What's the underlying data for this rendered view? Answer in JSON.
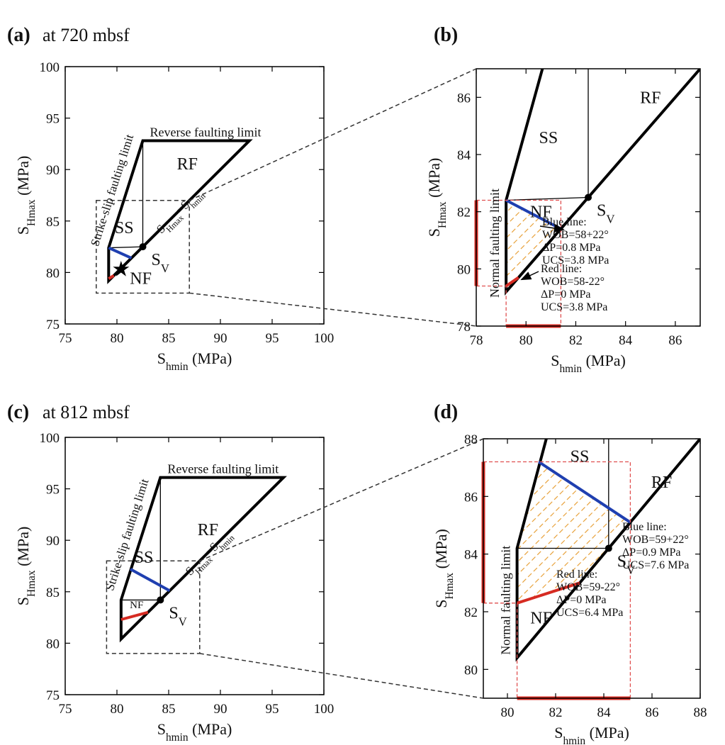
{
  "colors": {
    "frame": "#000000",
    "blue": "#1f3fb0",
    "red": "#d62b22",
    "hatch": "#e8a23c",
    "guide_dash": "#333333",
    "red_dash": "#e05050"
  },
  "chart_data": [
    {
      "id": "a",
      "label": "(a)",
      "subtitle": "at 720 mbsf",
      "type": "stress-polygon",
      "xlabel": "S",
      "xlabel_sub": "hmin",
      "xlabel_unit": " (MPa)",
      "ylabel": "S",
      "ylabel_sub": "Hmax",
      "ylabel_unit": " (MPa)",
      "xlim": [
        75,
        100
      ],
      "ylim": [
        75,
        100
      ],
      "xticks": [
        75,
        80,
        85,
        90,
        95,
        100
      ],
      "yticks": [
        75,
        80,
        85,
        90,
        95,
        100
      ],
      "sv": 82.5,
      "polygon": [
        [
          79.2,
          79.2
        ],
        [
          79.2,
          82.4
        ],
        [
          82.5,
          92.8
        ],
        [
          92.8,
          92.8
        ]
      ],
      "internal_lines": [
        [
          [
            79.2,
            82.4
          ],
          [
            82.5,
            82.5
          ]
        ],
        [
          [
            82.5,
            82.5
          ],
          [
            82.5,
            92.8
          ]
        ]
      ],
      "blue_line": [
        [
          79.2,
          82.4
        ],
        [
          81.4,
          81.4
        ]
      ],
      "red_line": [
        [
          79.2,
          79.4
        ],
        [
          79.7,
          79.7
        ]
      ],
      "star": [
        80.4,
        80.3
      ],
      "zoom_box": [
        [
          78,
          78
        ],
        [
          87,
          87
        ]
      ],
      "regions": [
        {
          "text": "RF",
          "at": [
            86.8,
            90.0
          ]
        },
        {
          "text": "SS",
          "at": [
            80.7,
            83.8
          ]
        },
        {
          "text": "NF",
          "at": [
            82.3,
            78.9
          ]
        }
      ],
      "annotations": {
        "sv_label": "S",
        "sv_sub": "V",
        "reverse_limit": "Reverse faulting limit",
        "strike_limit": "Strike-slip faulting limit",
        "diag_S1": "S",
        "diag_sub1": "Hmax",
        "diag_eq": "=S",
        "diag_sub2": "hmin"
      }
    },
    {
      "id": "b",
      "label": "(b)",
      "subtitle": "",
      "type": "stress-polygon",
      "xlabel": "S",
      "xlabel_sub": "hmin",
      "xlabel_unit": " (MPa)",
      "ylabel": "S",
      "ylabel_sub": "Hmax",
      "ylabel_unit": " (MPa)",
      "xlim": [
        78,
        87
      ],
      "ylim": [
        78,
        87
      ],
      "xticks": [
        78,
        80,
        82,
        84,
        86
      ],
      "yticks": [
        78,
        80,
        82,
        84,
        86
      ],
      "sv": 82.5,
      "polygon": [
        [
          79.2,
          79.2
        ],
        [
          79.2,
          82.4
        ],
        [
          82.5,
          92.8
        ],
        [
          92.8,
          92.8
        ]
      ],
      "internal_lines": [
        [
          [
            79.2,
            82.4
          ],
          [
            82.5,
            82.5
          ]
        ],
        [
          [
            82.5,
            82.5
          ],
          [
            82.5,
            92.8
          ]
        ]
      ],
      "blue_line": [
        [
          79.2,
          82.4
        ],
        [
          81.4,
          81.4
        ]
      ],
      "red_line": [
        [
          79.2,
          79.4
        ],
        [
          79.7,
          79.7
        ]
      ],
      "hatch_poly": [
        [
          79.2,
          79.4
        ],
        [
          79.2,
          82.4
        ],
        [
          81.4,
          81.4
        ],
        [
          79.7,
          79.7
        ]
      ],
      "window_box": [
        [
          79.2,
          79.4
        ],
        [
          81.4,
          82.4
        ]
      ],
      "x_range_bar": [
        79.2,
        81.4
      ],
      "y_range_bar": [
        79.4,
        82.4
      ],
      "regions": [
        {
          "text": "RF",
          "at": [
            85.0,
            85.8
          ]
        },
        {
          "text": "SS",
          "at": [
            80.9,
            84.4
          ]
        },
        {
          "text": "NF",
          "at": [
            80.6,
            81.8
          ]
        }
      ],
      "annotations": {
        "sv_label": "S",
        "sv_sub": "V",
        "normal_limit": "Normal faulting limit",
        "blue_text": [
          "Blue line:",
          "WOB=58+22°",
          "ΔP=0.8 MPa",
          "UCS=3.8 MPa"
        ],
        "red_text": [
          "Red line:",
          "WOB=58-22°",
          "ΔP=0 MPa",
          "UCS=3.8 MPa"
        ]
      }
    },
    {
      "id": "c",
      "label": "(c)",
      "subtitle": "at 812 mbsf",
      "type": "stress-polygon",
      "xlabel": "S",
      "xlabel_sub": "hmin",
      "xlabel_unit": " (MPa)",
      "ylabel": "S",
      "ylabel_sub": "Hmax",
      "ylabel_unit": " (MPa)",
      "xlim": [
        75,
        100
      ],
      "ylim": [
        75,
        100
      ],
      "xticks": [
        75,
        80,
        85,
        90,
        95,
        100
      ],
      "yticks": [
        75,
        80,
        85,
        90,
        95,
        100
      ],
      "sv": 84.2,
      "polygon": [
        [
          80.4,
          80.4
        ],
        [
          80.4,
          84.2
        ],
        [
          84.2,
          96.1
        ],
        [
          96.1,
          96.1
        ]
      ],
      "internal_lines": [
        [
          [
            80.4,
            84.2
          ],
          [
            84.2,
            84.2
          ]
        ],
        [
          [
            84.2,
            84.2
          ],
          [
            84.2,
            96.1
          ]
        ]
      ],
      "blue_line": [
        [
          81.3,
          87.2
        ],
        [
          85.1,
          85.1
        ]
      ],
      "red_line": [
        [
          80.4,
          82.3
        ],
        [
          83.0,
          83.0
        ]
      ],
      "zoom_box": [
        [
          79,
          79
        ],
        [
          88,
          88
        ]
      ],
      "regions": [
        {
          "text": "RF",
          "at": [
            88.8,
            90.5
          ]
        },
        {
          "text": "SS",
          "at": [
            82.6,
            87.8
          ]
        },
        {
          "text": "NF",
          "at": [
            81.9,
            83.4
          ]
        }
      ],
      "annotations": {
        "sv_label": "S",
        "sv_sub": "V",
        "reverse_limit": "Reverse faulting limit",
        "strike_limit": "Strike-slip faulting limit",
        "diag_S1": "S",
        "diag_sub1": "Hmax",
        "diag_eq": "=S",
        "diag_sub2": "hmin"
      }
    },
    {
      "id": "d",
      "label": "(d)",
      "subtitle": "",
      "type": "stress-polygon",
      "xlabel": "S",
      "xlabel_sub": "hmin",
      "xlabel_unit": " (MPa)",
      "ylabel": "S",
      "ylabel_sub": "Hmax",
      "ylabel_unit": " (MPa)",
      "xlim": [
        79,
        88
      ],
      "ylim": [
        79,
        88
      ],
      "xticks": [
        80,
        82,
        84,
        86,
        88
      ],
      "yticks": [
        80,
        82,
        84,
        86,
        88
      ],
      "sv": 84.2,
      "polygon": [
        [
          80.4,
          80.4
        ],
        [
          80.4,
          84.2
        ],
        [
          84.2,
          96.1
        ],
        [
          96.1,
          96.1
        ]
      ],
      "internal_lines": [
        [
          [
            80.4,
            84.2
          ],
          [
            84.2,
            84.2
          ]
        ],
        [
          [
            84.2,
            84.2
          ],
          [
            84.2,
            96.1
          ]
        ]
      ],
      "blue_line": [
        [
          81.3,
          87.2
        ],
        [
          85.1,
          85.1
        ]
      ],
      "red_line": [
        [
          80.4,
          82.3
        ],
        [
          83.0,
          83.0
        ]
      ],
      "hatch_poly": [
        [
          80.4,
          82.3
        ],
        [
          80.4,
          84.2
        ],
        [
          81.3,
          87.2
        ],
        [
          85.1,
          85.1
        ],
        [
          83.0,
          83.0
        ]
      ],
      "window_box": [
        [
          79.0,
          82.3
        ],
        [
          85.1,
          87.2
        ]
      ],
      "x_range_bar": [
        80.4,
        85.1
      ],
      "y_range_bar": [
        82.3,
        87.2
      ],
      "regions": [
        {
          "text": "RF",
          "at": [
            86.4,
            86.3
          ]
        },
        {
          "text": "SS",
          "at": [
            83.0,
            87.2
          ]
        },
        {
          "text": "NF",
          "at": [
            81.4,
            81.6
          ]
        }
      ],
      "annotations": {
        "sv_label": "S",
        "sv_sub": "V",
        "normal_limit": "Normal faulting limit",
        "blue_text": [
          "Blue line:",
          "WOB=59+22°",
          "ΔP=0.9 MPa",
          "UCS=7.6 MPa"
        ],
        "red_text": [
          "Red line:",
          "WOB=59-22°",
          "ΔP=0 MPa",
          "UCS=6.4 MPa"
        ]
      }
    }
  ]
}
